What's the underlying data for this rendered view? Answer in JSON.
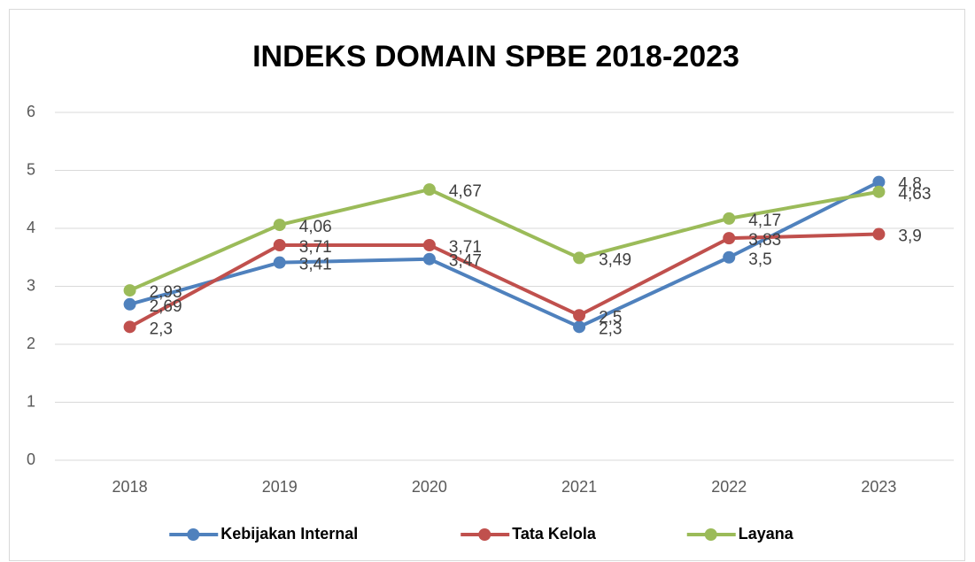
{
  "chart_data": {
    "type": "line",
    "title": "INDEKS DOMAIN SPBE 2018-2023",
    "categories": [
      "2018",
      "2019",
      "2020",
      "2021",
      "2022",
      "2023"
    ],
    "series": [
      {
        "name": "Kebijakan Internal",
        "color": "#4f81bd",
        "values": [
          2.69,
          3.41,
          3.47,
          2.3,
          3.5,
          4.8
        ],
        "value_labels": [
          "2,69",
          "3,41",
          "3,47",
          "2,3",
          "3,5",
          "4,8"
        ]
      },
      {
        "name": "Tata Kelola",
        "color": "#c0504d",
        "values": [
          2.3,
          3.71,
          3.71,
          2.5,
          3.83,
          3.9
        ],
        "value_labels": [
          "2,3",
          "3,71",
          "3,71",
          "2,5",
          "3,83",
          "3,9"
        ]
      },
      {
        "name": "Layana",
        "color": "#9bbb59",
        "values": [
          2.93,
          4.06,
          4.67,
          3.49,
          4.17,
          4.63
        ],
        "value_labels": [
          "2,93",
          "4,06",
          "4,67",
          "3,49",
          "4,17",
          "4,63"
        ]
      }
    ],
    "ylim": [
      0,
      6
    ],
    "yticks": [
      0,
      1,
      2,
      3,
      4,
      5,
      6
    ],
    "grid": true,
    "legend": "bottom"
  }
}
